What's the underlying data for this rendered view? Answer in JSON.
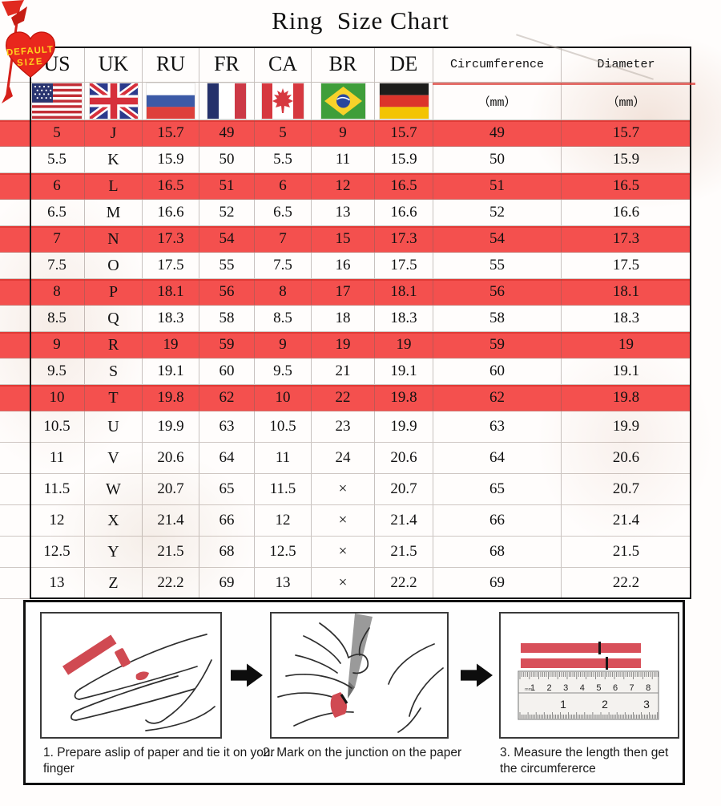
{
  "title": "Ring  Size Chart",
  "badge": {
    "line1": "DEFAULT",
    "line2": "SIZE"
  },
  "chart_data": {
    "type": "table",
    "title": "Ring  Size Chart",
    "columns": [
      "US",
      "UK",
      "RU",
      "FR",
      "CA",
      "BR",
      "DE",
      "Circumference",
      "Diameter"
    ],
    "unit_row": {
      "circumference": "（mm）",
      "diameter": "（mm）"
    },
    "flags": [
      "us",
      "uk",
      "ru",
      "fr",
      "ca",
      "br",
      "de"
    ],
    "highlight_color": "#f4504e",
    "rows": [
      {
        "cells": [
          "5",
          "J",
          "15.7",
          "49",
          "5",
          "9",
          "15.7",
          "49",
          "15.7"
        ],
        "highlight": true
      },
      {
        "cells": [
          "5.5",
          "K",
          "15.9",
          "50",
          "5.5",
          "11",
          "15.9",
          "50",
          "15.9"
        ],
        "highlight": false
      },
      {
        "cells": [
          "6",
          "L",
          "16.5",
          "51",
          "6",
          "12",
          "16.5",
          "51",
          "16.5"
        ],
        "highlight": true
      },
      {
        "cells": [
          "6.5",
          "M",
          "16.6",
          "52",
          "6.5",
          "13",
          "16.6",
          "52",
          "16.6"
        ],
        "highlight": false
      },
      {
        "cells": [
          "7",
          "N",
          "17.3",
          "54",
          "7",
          "15",
          "17.3",
          "54",
          "17.3"
        ],
        "highlight": true
      },
      {
        "cells": [
          "7.5",
          "O",
          "17.5",
          "55",
          "7.5",
          "16",
          "17.5",
          "55",
          "17.5"
        ],
        "highlight": false
      },
      {
        "cells": [
          "8",
          "P",
          "18.1",
          "56",
          "8",
          "17",
          "18.1",
          "56",
          "18.1"
        ],
        "highlight": true
      },
      {
        "cells": [
          "8.5",
          "Q",
          "18.3",
          "58",
          "8.5",
          "18",
          "18.3",
          "58",
          "18.3"
        ],
        "highlight": false
      },
      {
        "cells": [
          "9",
          "R",
          "19",
          "59",
          "9",
          "19",
          "19",
          "59",
          "19"
        ],
        "highlight": true
      },
      {
        "cells": [
          "9.5",
          "S",
          "19.1",
          "60",
          "9.5",
          "21",
          "19.1",
          "60",
          "19.1"
        ],
        "highlight": false
      },
      {
        "cells": [
          "10",
          "T",
          "19.8",
          "62",
          "10",
          "22",
          "19.8",
          "62",
          "19.8"
        ],
        "highlight": true
      },
      {
        "cells": [
          "10.5",
          "U",
          "19.9",
          "63",
          "10.5",
          "23",
          "19.9",
          "63",
          "19.9"
        ],
        "highlight": false
      },
      {
        "cells": [
          "11",
          "V",
          "20.6",
          "64",
          "11",
          "24",
          "20.6",
          "64",
          "20.6"
        ],
        "highlight": false
      },
      {
        "cells": [
          "11.5",
          "W",
          "20.7",
          "65",
          "11.5",
          "×",
          "20.7",
          "65",
          "20.7"
        ],
        "highlight": false
      },
      {
        "cells": [
          "12",
          "X",
          "21.4",
          "66",
          "12",
          "×",
          "21.4",
          "66",
          "21.4"
        ],
        "highlight": false
      },
      {
        "cells": [
          "12.5",
          "Y",
          "21.5",
          "68",
          "12.5",
          "×",
          "21.5",
          "68",
          "21.5"
        ],
        "highlight": false
      },
      {
        "cells": [
          "13",
          "Z",
          "22.2",
          "69",
          "13",
          "×",
          "22.2",
          "69",
          "22.2"
        ],
        "highlight": false
      }
    ]
  },
  "instructions": {
    "steps": [
      {
        "label": "1. Prepare aslip of paper and tie it on your finger"
      },
      {
        "label": "2. Mark on the junction on the paper"
      },
      {
        "label": "3. Measure the length then get the circumfererce"
      }
    ],
    "ruler": {
      "cm_labels": [
        "1",
        "2",
        "3",
        "4",
        "5",
        "6",
        "7",
        "8"
      ],
      "inch_labels": [
        "1",
        "2",
        "3"
      ],
      "unit": "mm"
    }
  },
  "colors": {
    "highlight_red": "#f4504e",
    "heart_red": "#e9271d",
    "badge_text_yellow": "#ffd21e",
    "paper_strip_red": "#d8505a"
  }
}
